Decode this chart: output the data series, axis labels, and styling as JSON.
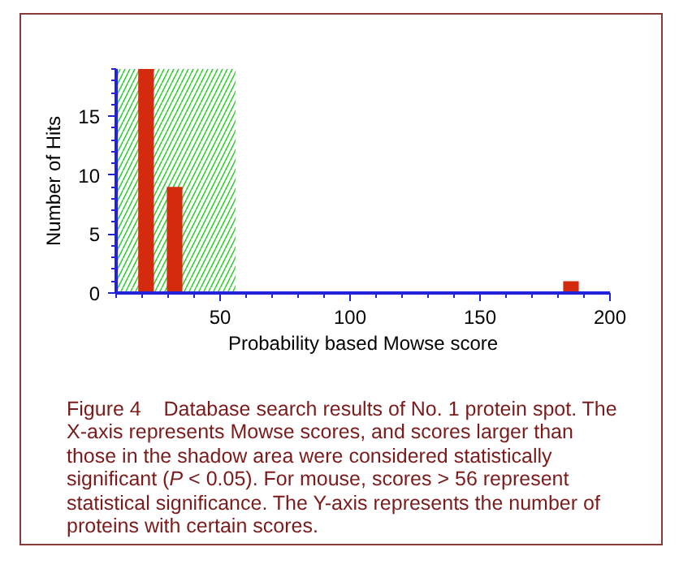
{
  "chart_data": {
    "type": "bar",
    "xlabel": "Probability based Mowse score",
    "ylabel": "Number of Hits",
    "x": [
      21.5,
      32.5,
      185
    ],
    "values": [
      19,
      9,
      1
    ],
    "color": "#d42a0e",
    "xlim": [
      10,
      200
    ],
    "xticks": [
      50,
      100,
      150,
      200
    ],
    "ylim": [
      0,
      19
    ],
    "yticks": [
      0,
      5,
      10,
      15
    ],
    "bands": [
      {
        "axis": "x",
        "from": 10,
        "to": 56,
        "color": "#33cc33"
      }
    ],
    "grid": false,
    "annotations": [
      "Figure 4    Database search results of No. 1 protein spot. The X-axis represents Mowse scores, and scores larger than those in the shadow area were considered statistically significant (P < 0.05). For mouse, scores > 56 represent statistical significance. The Y-axis represents the number of proteins with certain scores."
    ]
  }
}
